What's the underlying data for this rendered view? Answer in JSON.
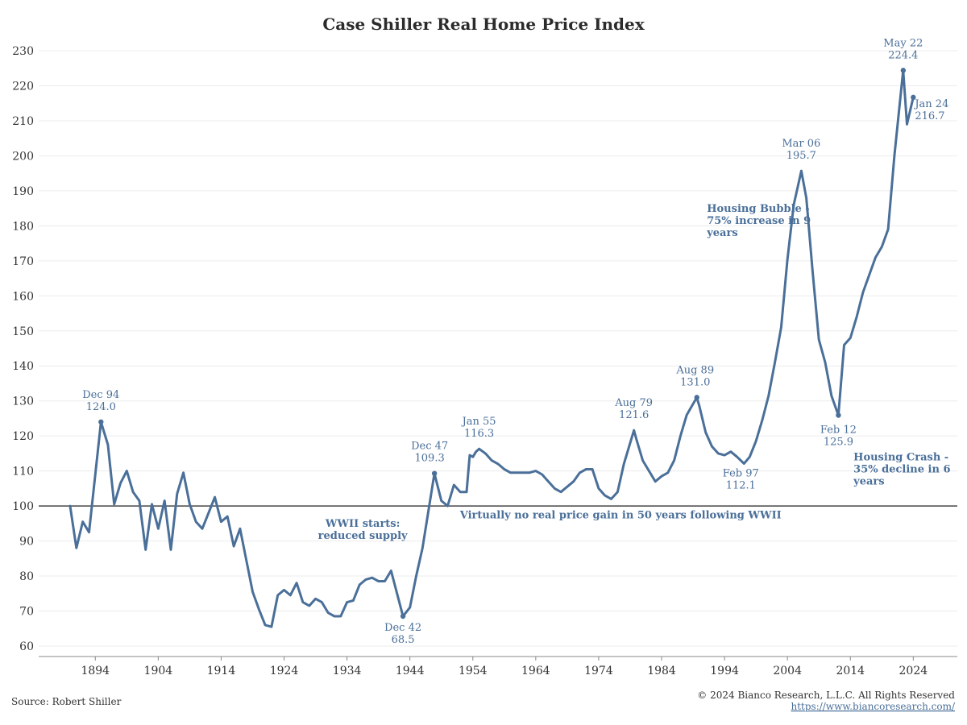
{
  "chart_data": {
    "type": "line",
    "title": "Case Shiller Real Home Price Index",
    "xlabel": "",
    "ylabel": "",
    "xlim": [
      1885,
      2031
    ],
    "ylim": [
      57,
      233
    ],
    "grid": true,
    "y_ticks": [
      "60",
      "70",
      "80",
      "90",
      "100",
      "110",
      "120",
      "130",
      "140",
      "150",
      "160",
      "170",
      "180",
      "190",
      "200",
      "210",
      "220",
      "230"
    ],
    "x_ticks": [
      "1894",
      "1904",
      "1914",
      "1924",
      "1934",
      "1944",
      "1954",
      "1964",
      "1974",
      "1984",
      "1994",
      "2004",
      "2014",
      "2024"
    ],
    "reference_line": 100,
    "line_color": "#4a6f99",
    "series": [
      {
        "x": [
          1890,
          1891,
          1892,
          1893,
          1894.9,
          1896,
          1897,
          1898,
          1899,
          1900,
          1901,
          1902,
          1903,
          1904,
          1905,
          1906,
          1907,
          1908,
          1909,
          1910,
          1911,
          1912,
          1913,
          1914,
          1915,
          1916,
          1917,
          1918,
          1919,
          1920,
          1921,
          1922,
          1923,
          1924,
          1925,
          1926,
          1927,
          1928,
          1929,
          1930,
          1931,
          1932,
          1933,
          1934,
          1935,
          1936,
          1937,
          1938,
          1939,
          1940,
          1941,
          1942.9,
          1944,
          1945,
          1946,
          1947.9,
          1949,
          1950,
          1951,
          1952,
          1953,
          1953.5,
          1954,
          1954.5,
          1955,
          1956,
          1957,
          1958,
          1959,
          1960,
          1961,
          1962,
          1963,
          1964,
          1965,
          1966,
          1967,
          1968,
          1969,
          1970,
          1971,
          1972,
          1973,
          1974,
          1975,
          1976,
          1977,
          1978,
          1979.6,
          1980,
          1981,
          1982,
          1983,
          1984,
          1985,
          1986,
          1987,
          1988,
          1989.6,
          1990,
          1991,
          1992,
          1993,
          1994,
          1995,
          1996,
          1997.1,
          1998,
          1999,
          2000,
          2001,
          2002,
          2003,
          2004,
          2005,
          2006.2,
          2007,
          2008,
          2009,
          2010,
          2011,
          2012.1,
          2013,
          2014,
          2015,
          2016,
          2017,
          2018,
          2019,
          2020,
          2021,
          2022.4,
          2023,
          2024
        ],
        "y": [
          100,
          88,
          95.5,
          92.5,
          124,
          117.5,
          100.5,
          106.5,
          110,
          104,
          101.5,
          87.5,
          100.5,
          93.5,
          101.5,
          87.5,
          103.5,
          109.5,
          100.5,
          95.5,
          93.5,
          98,
          102.5,
          95.5,
          97,
          88.5,
          93.5,
          84.5,
          75.5,
          70.5,
          66,
          65.5,
          74.5,
          76,
          74.5,
          78,
          72.5,
          71.5,
          73.5,
          72.5,
          69.5,
          68.5,
          68.5,
          72.5,
          73,
          77.5,
          79,
          79.5,
          78.5,
          78.5,
          81.5,
          68.5,
          71,
          80,
          88,
          109.3,
          101.5,
          100,
          106,
          104,
          104,
          114.5,
          114,
          115.5,
          116.3,
          115,
          113,
          112,
          110.5,
          109.5,
          109.5,
          109.5,
          109.5,
          110,
          109,
          107,
          105,
          104,
          105.5,
          107,
          109.5,
          110.5,
          110.5,
          105,
          103,
          102,
          104,
          112,
          121.6,
          119,
          113,
          110,
          107,
          108.5,
          109.5,
          113,
          120,
          126,
          131,
          128.5,
          121,
          117,
          115,
          114.5,
          115.5,
          114,
          112.1,
          114,
          118.5,
          124.5,
          131.5,
          141,
          151,
          170.5,
          186,
          195.7,
          188,
          167,
          147.5,
          141,
          131.5,
          125.9,
          146,
          148,
          154,
          161,
          166,
          171,
          174,
          179,
          200,
          224.4,
          209,
          216.7
        ]
      }
    ],
    "point_labels": [
      {
        "id": "dec94",
        "lines": [
          "Dec 94",
          "124.0"
        ],
        "x": 1894.9,
        "y": 124,
        "dx": 0,
        "dy": -30,
        "anchor": "middle",
        "dot": true
      },
      {
        "id": "dec42",
        "lines": [
          "Dec 42",
          "68.5"
        ],
        "x": 1942.9,
        "y": 68.5,
        "dx": 0,
        "dy": 18,
        "anchor": "middle",
        "dot": true
      },
      {
        "id": "dec47",
        "lines": [
          "Dec 47",
          "109.3"
        ],
        "x": 1947.9,
        "y": 109.3,
        "dx": -6,
        "dy": -30,
        "anchor": "middle",
        "dot": true
      },
      {
        "id": "jan55",
        "lines": [
          "Jan 55",
          "116.3"
        ],
        "x": 1955,
        "y": 116.3,
        "dx": 0,
        "dy": -30,
        "anchor": "middle",
        "dot": false
      },
      {
        "id": "aug79",
        "lines": [
          "Aug 79",
          "121.6"
        ],
        "x": 1979.6,
        "y": 121.6,
        "dx": 0,
        "dy": -30,
        "anchor": "middle",
        "dot": false
      },
      {
        "id": "aug89",
        "lines": [
          "Aug 89",
          "131.0"
        ],
        "x": 1989.6,
        "y": 131,
        "dx": -2,
        "dy": -30,
        "anchor": "middle",
        "dot": true
      },
      {
        "id": "feb97",
        "lines": [
          "Feb 97",
          "112.1"
        ],
        "x": 1997.1,
        "y": 112.1,
        "dx": -4,
        "dy": 16,
        "anchor": "middle",
        "dot": false
      },
      {
        "id": "mar06",
        "lines": [
          "Mar 06",
          "195.7"
        ],
        "x": 2006.2,
        "y": 195.7,
        "dx": 0,
        "dy": -30,
        "anchor": "middle",
        "dot": false
      },
      {
        "id": "feb12",
        "lines": [
          "Feb 12",
          "125.9"
        ],
        "x": 2012.1,
        "y": 125.9,
        "dx": 0,
        "dy": 22,
        "anchor": "middle",
        "dot": true
      },
      {
        "id": "may22",
        "lines": [
          "May 22",
          "224.4"
        ],
        "x": 2022.4,
        "y": 224.4,
        "dx": 0,
        "dy": -30,
        "anchor": "middle",
        "dot": true
      },
      {
        "id": "jan24",
        "lines": [
          "Jan 24",
          "216.7"
        ],
        "x": 2024,
        "y": 216.7,
        "dx": 2,
        "dy": 12,
        "anchor": "start",
        "dot": true
      }
    ],
    "annotations": [
      {
        "id": "wwii",
        "lines": [
          "WWII starts:",
          "reduced supply"
        ],
        "x": 1936.5,
        "y": 94,
        "anchor": "middle"
      },
      {
        "id": "no-gain",
        "lines": [
          "Virtually no real price gain in 50 years following WWII"
        ],
        "x": 1977.5,
        "y": 96.5,
        "anchor": "middle"
      },
      {
        "id": "bubble",
        "lines": [
          "Housing Bubble -",
          "75% increase in 9",
          "years"
        ],
        "x": 1991.2,
        "y": 184,
        "anchor": "start"
      },
      {
        "id": "crash",
        "lines": [
          "Housing Crash -",
          "35% decline in 6",
          "years"
        ],
        "x": 2014.5,
        "y": 113,
        "anchor": "start"
      }
    ]
  },
  "footer": {
    "source": "Source: Robert Shiller",
    "copyright": "© 2024 Bianco Research, L.L.C. All Rights Reserved",
    "url": "https://www.biancoresearch.com/"
  }
}
